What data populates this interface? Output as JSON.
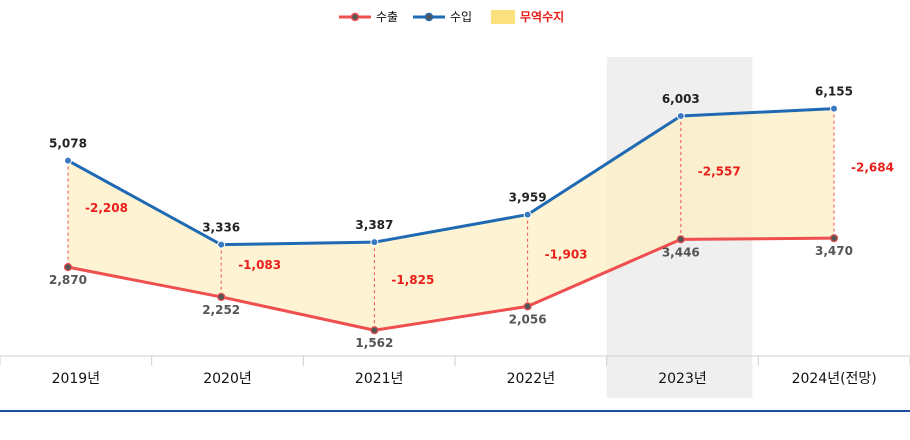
{
  "chart_data": {
    "type": "line",
    "categories": [
      "2019년",
      "2020년",
      "2021년",
      "2022년",
      "2023년",
      "2024년(전망)"
    ],
    "series": [
      {
        "name": "수출",
        "values": [
          2870,
          2252,
          1562,
          2056,
          3446,
          3470
        ],
        "labels": [
          "2,870",
          "2,252",
          "1,562",
          "2,056",
          "3,446",
          "3,470"
        ],
        "color": "#ef4f4f"
      },
      {
        "name": "수입",
        "values": [
          5078,
          3336,
          3387,
          3959,
          6003,
          6155
        ],
        "labels": [
          "5,078",
          "3,336",
          "3,387",
          "3,959",
          "6,003",
          "6,155"
        ],
        "color": "#1f6ab3"
      }
    ],
    "balance": {
      "name": "무역수지",
      "values": [
        -2208,
        -1083,
        -1825,
        -1903,
        -2557,
        -2684
      ],
      "labels": [
        "-2,208",
        "-1,083",
        "-1,825",
        "-1,903",
        "-2,557",
        "-2,684"
      ],
      "fill": "#fdf0c4",
      "legend_color": "#fbe07e",
      "label_color": "#e8201c"
    },
    "highlight_category": "2023년",
    "highlight_color": "#efefef",
    "legend_position": "top-center"
  }
}
